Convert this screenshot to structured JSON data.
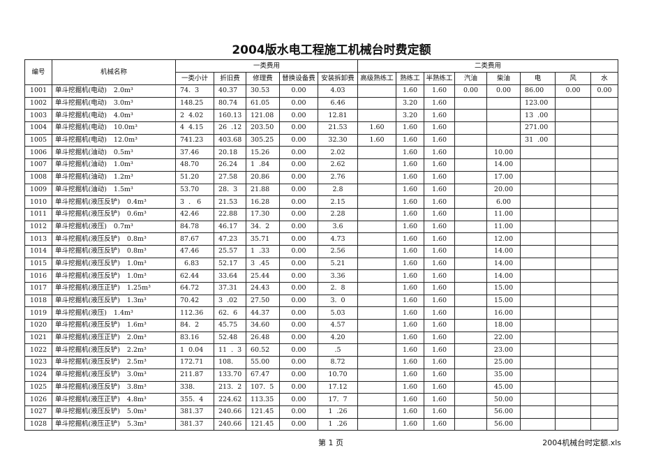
{
  "title": "2004版水电工程施工机械台时费定额",
  "header": {
    "id": "编号",
    "name": "机械名称",
    "group1": "一类费用",
    "group2": "二类费用",
    "columns": [
      "一类小计",
      "折旧费",
      "修理费",
      "替换设备费",
      "安装拆卸费",
      "高级熟练工",
      "熟练工",
      "半熟练工",
      "汽油",
      "柴油",
      "电",
      "风",
      "水"
    ]
  },
  "rows": [
    {
      "id": "1001",
      "name": "单斗挖掘机(电动)",
      "size": "2.0m³",
      "v": [
        "74.  3",
        "40.37",
        "30.53",
        "0.00",
        "4.03",
        "",
        "1.60",
        "1.60",
        "0.00",
        "0.00",
        "86.00",
        "0.00",
        "0.00"
      ]
    },
    {
      "id": "1002",
      "name": "单斗挖掘机(电动)",
      "size": "3.0m³",
      "v": [
        "148.25",
        "80.74",
        "61.05",
        "0.00",
        "6.46",
        "",
        "3.20",
        "1.60",
        "",
        "",
        "123.00",
        "",
        ""
      ]
    },
    {
      "id": "1003",
      "name": "单斗挖掘机(电动)",
      "size": "4.0m³",
      "v": [
        "2  4.02",
        "160.13",
        "121.08",
        "0.00",
        "12.81",
        "",
        "3.20",
        "1.60",
        "",
        "",
        "13  .00",
        "",
        ""
      ]
    },
    {
      "id": "1004",
      "name": "单斗挖掘机(电动)",
      "size": "10.0m³",
      "v": [
        "4  4.15",
        "26  .12",
        "203.50",
        "0.00",
        "21.53",
        "1.60",
        "1.60",
        "1.60",
        "",
        "",
        "271.00",
        "",
        ""
      ]
    },
    {
      "id": "1005",
      "name": "单斗挖掘机(电动)",
      "size": "12.0m³",
      "v": [
        "741.23",
        "403.68",
        "305.25",
        "0.00",
        "32.30",
        "1.60",
        "1.60",
        "1.60",
        "",
        "",
        "31  .00",
        "",
        ""
      ]
    },
    {
      "id": "1006",
      "name": "单斗挖掘机(油动)",
      "size": "0.5m³",
      "v": [
        "37.46",
        "20.18",
        "15.26",
        "0.00",
        "2.02",
        "",
        "1.60",
        "1.60",
        "",
        "10.00",
        "",
        "",
        ""
      ]
    },
    {
      "id": "1007",
      "name": "单斗挖掘机(油动)",
      "size": "1.0m³",
      "v": [
        "48.70",
        "26.24",
        "1  .84",
        "0.00",
        "2.62",
        "",
        "1.60",
        "1.60",
        "",
        "14.00",
        "",
        "",
        ""
      ]
    },
    {
      "id": "1008",
      "name": "单斗挖掘机(油动)",
      "size": "1.2m³",
      "v": [
        "51.20",
        "27.58",
        "20.86",
        "0.00",
        "2.76",
        "",
        "1.60",
        "1.60",
        "",
        "17.00",
        "",
        "",
        ""
      ]
    },
    {
      "id": "1009",
      "name": "单斗挖掘机(油动)",
      "size": "1.5m³",
      "v": [
        "53.70",
        "28.  3",
        "21.88",
        "0.00",
        "2.8",
        "",
        "1.60",
        "1.60",
        "",
        "20.00",
        "",
        "",
        ""
      ]
    },
    {
      "id": "1010",
      "name": "单斗挖掘机(液压反铲)",
      "size": "0.4m³",
      "v": [
        "3  .   6",
        "21.53",
        "16.28",
        "0.00",
        "2.15",
        "",
        "1.60",
        "1.60",
        "",
        "6.00",
        "",
        "",
        ""
      ]
    },
    {
      "id": "1011",
      "name": "单斗挖掘机(液压反铲)",
      "size": "0.6m³",
      "v": [
        "42.46",
        "22.88",
        "17.30",
        "0.00",
        "2.28",
        "",
        "1.60",
        "1.60",
        "",
        "11.00",
        "",
        "",
        ""
      ]
    },
    {
      "id": "1012",
      "name": "单斗挖掘机(液压)",
      "size": "0.7m³",
      "v": [
        "84.78",
        "46.17",
        "34.  2",
        "0.00",
        "3.6",
        "",
        "1.60",
        "1.60",
        "",
        "11.00",
        "",
        "",
        ""
      ]
    },
    {
      "id": "1013",
      "name": "单斗挖掘机(液压反铲)",
      "size": "0.8m³",
      "v": [
        "87.67",
        "47.23",
        "35.71",
        "0.00",
        "4.73",
        "",
        "1.60",
        "1.60",
        "",
        "12.00",
        "",
        "",
        ""
      ]
    },
    {
      "id": "1014",
      "name": "单斗挖掘机(液压反铲)",
      "size": "0.8m³",
      "v": [
        "47.46",
        "25.57",
        "1  .33",
        "0.00",
        "2.56",
        "",
        "1.60",
        "1.60",
        "",
        "14.00",
        "",
        "",
        ""
      ]
    },
    {
      "id": "1015",
      "name": "单斗挖掘机(液压反铲)",
      "size": "1.0m³",
      "v": [
        "  6.83",
        "52.17",
        "3  .45",
        "0.00",
        "5.21",
        "",
        "1.60",
        "1.60",
        "",
        "14.00",
        "",
        "",
        ""
      ]
    },
    {
      "id": "1016",
      "name": "单斗挖掘机(液压反铲)",
      "size": "1.0m³",
      "v": [
        "62.44",
        "33.64",
        "25.44",
        "0.00",
        "3.36",
        "",
        "1.60",
        "1.60",
        "",
        "14.00",
        "",
        "",
        ""
      ]
    },
    {
      "id": "1017",
      "name": "单斗挖掘机(液压正铲)",
      "size": "1.25m³",
      "v": [
        "64.72",
        "37.31",
        "24.43",
        "0.00",
        "2.  8",
        "",
        "1.60",
        "1.60",
        "",
        "15.00",
        "",
        "",
        ""
      ]
    },
    {
      "id": "1018",
      "name": "单斗挖掘机(液压反铲)",
      "size": "1.3m³",
      "v": [
        "70.42",
        "3  .02",
        "27.50",
        "0.00",
        "3.  0",
        "",
        "1.60",
        "1.60",
        "",
        "15.00",
        "",
        "",
        ""
      ]
    },
    {
      "id": "1019",
      "name": "单斗挖掘机(液压)",
      "size": "1.4m³",
      "v": [
        "112.36",
        "62.  6",
        "44.37",
        "0.00",
        "5.03",
        "",
        "1.60",
        "1.60",
        "",
        "16.00",
        "",
        "",
        ""
      ]
    },
    {
      "id": "1020",
      "name": "单斗挖掘机(液压反铲)",
      "size": "1.6m³",
      "v": [
        "84.  2",
        "45.75",
        "34.60",
        "0.00",
        "4.57",
        "",
        "1.60",
        "1.60",
        "",
        "18.00",
        "",
        "",
        ""
      ]
    },
    {
      "id": "1021",
      "name": "单斗挖掘机(液压正铲)",
      "size": "2.0m³",
      "v": [
        "83.16",
        "52.48",
        "26.48",
        "0.00",
        "4.20",
        "",
        "1.60",
        "1.60",
        "",
        "22.00",
        "",
        "",
        ""
      ]
    },
    {
      "id": "1022",
      "name": "单斗挖掘机(液压反铲)",
      "size": "2.2m³",
      "v": [
        "1  0.04",
        "11  .  3",
        "60.52",
        "0.00",
        ".5",
        "",
        "1.60",
        "1.60",
        "",
        "23.00",
        "",
        "",
        ""
      ]
    },
    {
      "id": "1023",
      "name": "单斗挖掘机(液压反铲)",
      "size": "2.5m³",
      "v": [
        "172.71",
        "108.",
        "55.00",
        "0.00",
        "8.72",
        "",
        "1.60",
        "1.60",
        "",
        "25.00",
        "",
        "",
        ""
      ]
    },
    {
      "id": "1024",
      "name": "单斗挖掘机(液压反铲)",
      "size": "3.0m³",
      "v": [
        "211.87",
        "133.70",
        "67.47",
        "0.00",
        "10.70",
        "",
        "1.60",
        "1.60",
        "",
        "35.00",
        "",
        "",
        ""
      ]
    },
    {
      "id": "1025",
      "name": "单斗挖掘机(液压反铲)",
      "size": "3.8m³",
      "v": [
        "338.",
        "213.  2",
        "107.  5",
        "0.00",
        "17.12",
        "",
        "1.60",
        "1.60",
        "",
        "45.00",
        "",
        "",
        ""
      ]
    },
    {
      "id": "1026",
      "name": "单斗挖掘机(液压正铲)",
      "size": "4.8m³",
      "v": [
        "355.  4",
        "224.62",
        "113.35",
        "0.00",
        "17.  7",
        "",
        "1.60",
        "1.60",
        "",
        "50.00",
        "",
        "",
        ""
      ]
    },
    {
      "id": "1027",
      "name": "单斗挖掘机(液压反铲)",
      "size": "5.0m³",
      "v": [
        "381.37",
        "240.66",
        "121.45",
        "0.00",
        "1  .26",
        "",
        "1.60",
        "1.60",
        "",
        "56.00",
        "",
        "",
        ""
      ]
    },
    {
      "id": "1028",
      "name": "单斗挖掘机(液压正铲)",
      "size": "5.3m³",
      "v": [
        "381.37",
        "240.66",
        "121.45",
        "0.00",
        "1  .26",
        "",
        "1.60",
        "1.60",
        "",
        "56.00",
        "",
        "",
        ""
      ]
    }
  ],
  "footer": {
    "page": "第 1 页",
    "file": "2004机械台时定额.xls"
  }
}
